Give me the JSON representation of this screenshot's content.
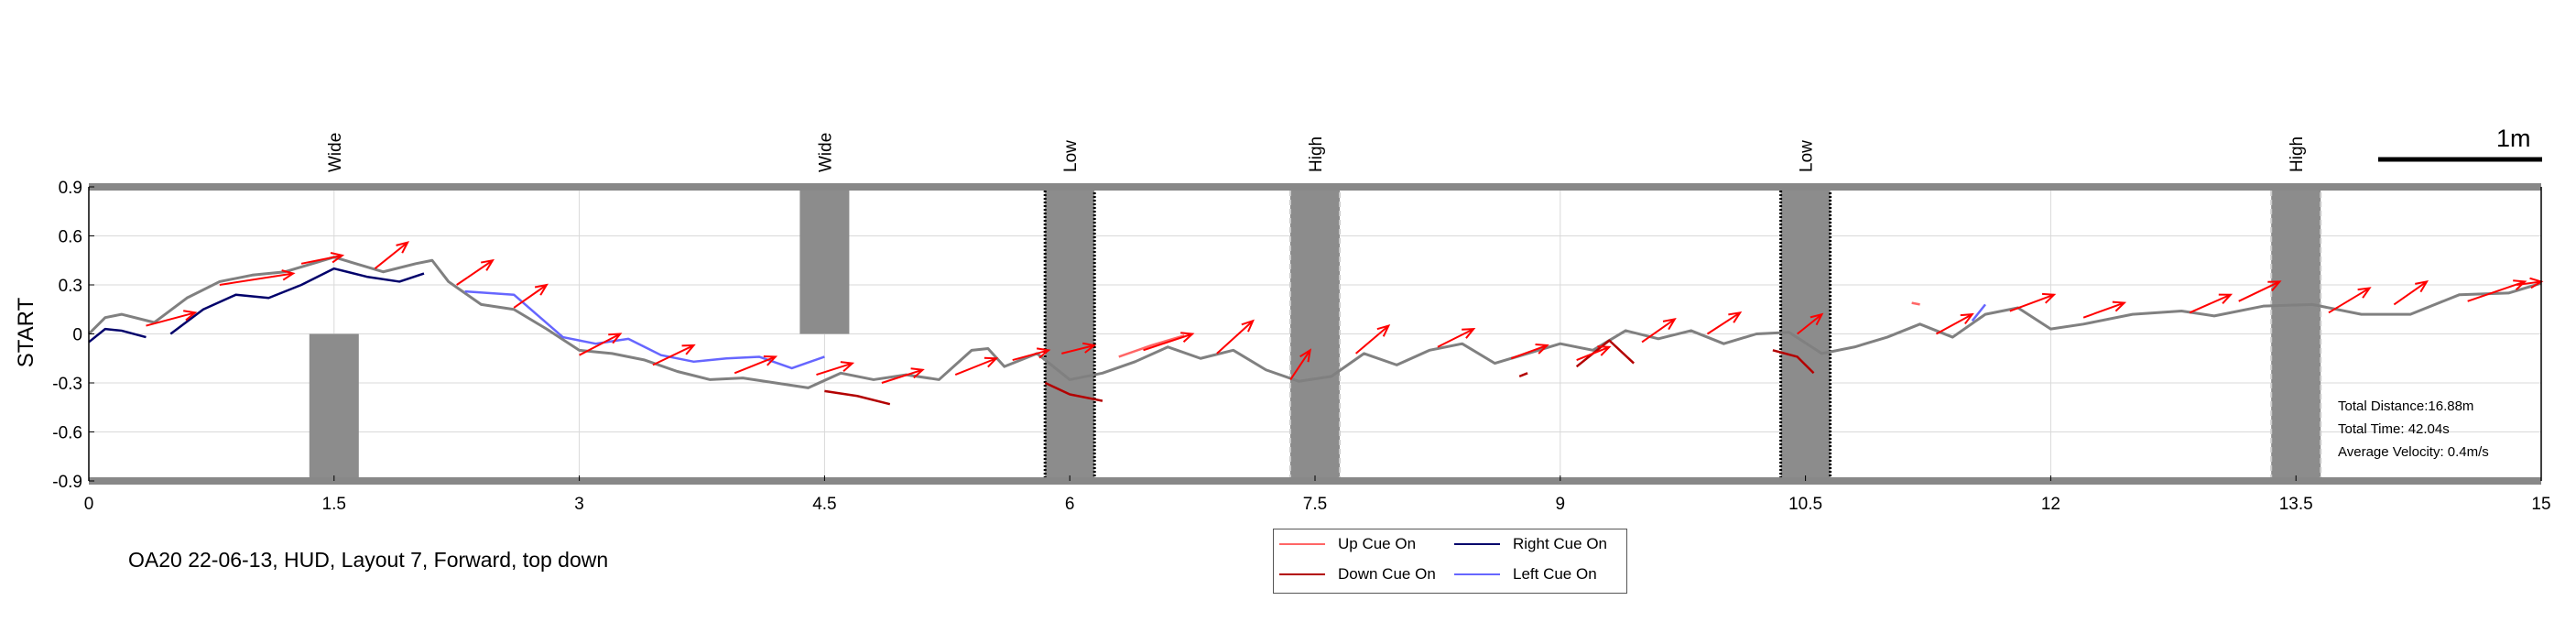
{
  "caption": "OA20 22-06-13, HUD, Layout 7, Forward, top down",
  "scale_bar_label": "1m",
  "legend": [
    {
      "label": "Up Cue On",
      "color": "#ff6666"
    },
    {
      "label": "Right Cue On",
      "color": "#00006b"
    },
    {
      "label": "Down Cue On",
      "color": "#b30000"
    },
    {
      "label": "Left Cue On",
      "color": "#6666ff"
    }
  ],
  "stats": {
    "distance": "Total Distance:16.88m",
    "time": "Total Time: 42.04s",
    "velocity": "Average Velocity: 0.4m/s"
  },
  "colors": {
    "path": "#808080",
    "arrow": "#ff0000",
    "obstacle": "#8c8c8c",
    "up_cue": "#ff6666",
    "down_cue": "#b30000",
    "right_cue": "#00006b",
    "left_cue": "#6666ff"
  },
  "chart_data": {
    "type": "line",
    "ylabel": "START",
    "xlim": [
      0,
      15
    ],
    "ylim": [
      -0.9,
      0.9
    ],
    "x_ticks": [
      "0",
      "1.5",
      "3",
      "4.5",
      "6",
      "7.5",
      "9",
      "10.5",
      "12",
      "13.5",
      "15"
    ],
    "y_ticks": [
      "0.9",
      "0.6",
      "0.3",
      "0",
      "-0.3",
      "-0.6",
      "-0.9"
    ],
    "grid": true,
    "obstacles": [
      {
        "label": "Wide",
        "x_center": 1.5,
        "y_range": [
          -0.9,
          0
        ]
      },
      {
        "label": "Wide",
        "x_center": 4.5,
        "y_range": [
          0,
          0.9
        ]
      },
      {
        "label": "Low",
        "x_center": 6.0,
        "y_range": [
          -0.9,
          0.9
        ]
      },
      {
        "label": "High",
        "x_center": 7.5,
        "y_range": [
          -0.9,
          0.9
        ]
      },
      {
        "label": "Low",
        "x_center": 10.5,
        "y_range": [
          -0.9,
          0.9
        ]
      },
      {
        "label": "High",
        "x_center": 13.5,
        "y_range": [
          -0.9,
          0.9
        ]
      }
    ],
    "path": {
      "x": [
        0,
        0.1,
        0.2,
        0.4,
        0.6,
        0.8,
        1.0,
        1.2,
        1.4,
        1.5,
        1.6,
        1.8,
        2.0,
        2.1,
        2.2,
        2.4,
        2.6,
        2.8,
        3.0,
        3.2,
        3.4,
        3.6,
        3.8,
        4.0,
        4.2,
        4.4,
        4.6,
        4.8,
        5.0,
        5.2,
        5.4,
        5.5,
        5.6,
        5.8,
        6.0,
        6.2,
        6.4,
        6.6,
        6.8,
        7.0,
        7.2,
        7.4,
        7.6,
        7.8,
        8.0,
        8.2,
        8.4,
        8.6,
        8.8,
        9.0,
        9.2,
        9.4,
        9.6,
        9.8,
        10.0,
        10.2,
        10.4,
        10.6,
        10.8,
        11.0,
        11.2,
        11.4,
        11.6,
        11.8,
        12.0,
        12.2,
        12.5,
        12.8,
        13.0,
        13.3,
        13.6,
        13.9,
        14.2,
        14.5,
        14.8,
        15.0
      ],
      "y": [
        0.0,
        0.1,
        0.12,
        0.07,
        0.22,
        0.32,
        0.36,
        0.38,
        0.44,
        0.47,
        0.44,
        0.38,
        0.43,
        0.45,
        0.32,
        0.18,
        0.15,
        0.03,
        -0.1,
        -0.12,
        -0.16,
        -0.23,
        -0.28,
        -0.27,
        -0.3,
        -0.33,
        -0.24,
        -0.28,
        -0.25,
        -0.28,
        -0.1,
        -0.09,
        -0.2,
        -0.12,
        -0.28,
        -0.24,
        -0.17,
        -0.08,
        -0.15,
        -0.1,
        -0.22,
        -0.29,
        -0.26,
        -0.12,
        -0.19,
        -0.1,
        -0.06,
        -0.18,
        -0.12,
        -0.06,
        -0.1,
        0.02,
        -0.03,
        0.02,
        -0.06,
        0.0,
        0.01,
        -0.12,
        -0.08,
        -0.02,
        0.06,
        -0.02,
        0.12,
        0.16,
        0.03,
        0.06,
        0.12,
        0.14,
        0.11,
        0.17,
        0.18,
        0.12,
        0.12,
        0.24,
        0.25,
        0.31
      ]
    },
    "cue_segments": [
      {
        "type": "right",
        "x": [
          0.0,
          0.1,
          0.2,
          0.35
        ],
        "y": [
          -0.05,
          0.03,
          0.02,
          -0.02
        ]
      },
      {
        "type": "right",
        "x": [
          0.5,
          0.7,
          0.9,
          1.1,
          1.3,
          1.5,
          1.7,
          1.9,
          2.05
        ],
        "y": [
          0.0,
          0.15,
          0.24,
          0.22,
          0.3,
          0.4,
          0.35,
          0.32,
          0.37
        ]
      },
      {
        "type": "left",
        "x": [
          2.3,
          2.6,
          2.9,
          3.1,
          3.3,
          3.5,
          3.7,
          3.9,
          4.1,
          4.3,
          4.5
        ],
        "y": [
          0.26,
          0.24,
          -0.02,
          -0.06,
          -0.03,
          -0.13,
          -0.17,
          -0.15,
          -0.14,
          -0.21,
          -0.14
        ]
      },
      {
        "type": "down",
        "x": [
          4.5,
          4.7,
          4.9
        ],
        "y": [
          -0.35,
          -0.38,
          -0.43
        ]
      },
      {
        "type": "down",
        "x": [
          5.85,
          6.0,
          6.15,
          6.2
        ],
        "y": [
          -0.3,
          -0.37,
          -0.4,
          -0.41
        ]
      },
      {
        "type": "up",
        "x": [
          6.3,
          6.5,
          6.7
        ],
        "y": [
          -0.14,
          -0.07,
          -0.01
        ]
      },
      {
        "type": "down",
        "x": [
          8.75,
          8.8
        ],
        "y": [
          -0.26,
          -0.24
        ]
      },
      {
        "type": "down",
        "x": [
          9.1,
          9.3,
          9.45
        ],
        "y": [
          -0.2,
          -0.04,
          -0.18
        ]
      },
      {
        "type": "down",
        "x": [
          10.3,
          10.45,
          10.55
        ],
        "y": [
          -0.1,
          -0.14,
          -0.24
        ]
      },
      {
        "type": "up",
        "x": [
          11.15,
          11.2
        ],
        "y": [
          0.19,
          0.18
        ]
      },
      {
        "type": "left",
        "x": [
          11.52,
          11.6
        ],
        "y": [
          0.08,
          0.18
        ]
      }
    ],
    "arrows": [
      {
        "x": 0.35,
        "y": 0.05,
        "dx": 0.3,
        "dy": 0.08
      },
      {
        "x": 0.8,
        "y": 0.3,
        "dx": 0.45,
        "dy": 0.07
      },
      {
        "x": 1.3,
        "y": 0.43,
        "dx": 0.25,
        "dy": 0.05
      },
      {
        "x": 1.75,
        "y": 0.4,
        "dx": 0.2,
        "dy": 0.16
      },
      {
        "x": 2.25,
        "y": 0.3,
        "dx": 0.22,
        "dy": 0.15
      },
      {
        "x": 2.6,
        "y": 0.16,
        "dx": 0.2,
        "dy": 0.14
      },
      {
        "x": 3.0,
        "y": -0.13,
        "dx": 0.25,
        "dy": 0.13
      },
      {
        "x": 3.45,
        "y": -0.19,
        "dx": 0.25,
        "dy": 0.12
      },
      {
        "x": 3.95,
        "y": -0.24,
        "dx": 0.25,
        "dy": 0.1
      },
      {
        "x": 4.45,
        "y": -0.25,
        "dx": 0.22,
        "dy": 0.07
      },
      {
        "x": 4.85,
        "y": -0.3,
        "dx": 0.25,
        "dy": 0.08
      },
      {
        "x": 5.3,
        "y": -0.25,
        "dx": 0.25,
        "dy": 0.1
      },
      {
        "x": 5.65,
        "y": -0.16,
        "dx": 0.22,
        "dy": 0.06
      },
      {
        "x": 5.95,
        "y": -0.12,
        "dx": 0.2,
        "dy": 0.05
      },
      {
        "x": 6.45,
        "y": -0.1,
        "dx": 0.3,
        "dy": 0.1
      },
      {
        "x": 6.9,
        "y": -0.12,
        "dx": 0.22,
        "dy": 0.2
      },
      {
        "x": 7.35,
        "y": -0.28,
        "dx": 0.12,
        "dy": 0.18
      },
      {
        "x": 7.75,
        "y": -0.12,
        "dx": 0.2,
        "dy": 0.17
      },
      {
        "x": 8.25,
        "y": -0.08,
        "dx": 0.22,
        "dy": 0.11
      },
      {
        "x": 8.7,
        "y": -0.15,
        "dx": 0.22,
        "dy": 0.08
      },
      {
        "x": 9.1,
        "y": -0.16,
        "dx": 0.2,
        "dy": 0.08
      },
      {
        "x": 9.5,
        "y": -0.05,
        "dx": 0.2,
        "dy": 0.14
      },
      {
        "x": 9.9,
        "y": 0.0,
        "dx": 0.2,
        "dy": 0.13
      },
      {
        "x": 10.45,
        "y": 0.0,
        "dx": 0.15,
        "dy": 0.12
      },
      {
        "x": 11.3,
        "y": 0.0,
        "dx": 0.22,
        "dy": 0.12
      },
      {
        "x": 11.75,
        "y": 0.14,
        "dx": 0.27,
        "dy": 0.1
      },
      {
        "x": 12.2,
        "y": 0.1,
        "dx": 0.25,
        "dy": 0.09
      },
      {
        "x": 12.85,
        "y": 0.13,
        "dx": 0.25,
        "dy": 0.11
      },
      {
        "x": 13.15,
        "y": 0.2,
        "dx": 0.25,
        "dy": 0.12
      },
      {
        "x": 13.7,
        "y": 0.13,
        "dx": 0.25,
        "dy": 0.15
      },
      {
        "x": 14.1,
        "y": 0.18,
        "dx": 0.2,
        "dy": 0.14
      },
      {
        "x": 14.55,
        "y": 0.2,
        "dx": 0.35,
        "dy": 0.12
      },
      {
        "x": 14.85,
        "y": 0.3,
        "dx": 0.15,
        "dy": 0.02
      }
    ]
  }
}
